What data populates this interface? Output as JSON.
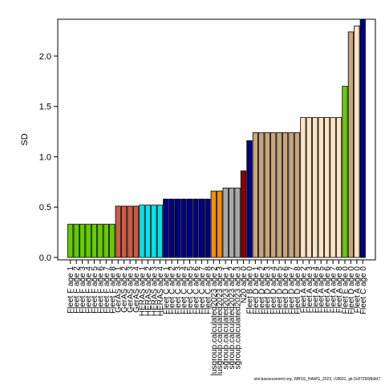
{
  "chart_data": {
    "type": "bar",
    "xlabel": "",
    "ylabel": "SD",
    "ylim": [
      0,
      2.35
    ],
    "yticks": [
      0.0,
      0.5,
      1.0,
      1.5,
      2.0
    ],
    "ytick_labels": [
      "0.0",
      "0.5",
      "1.0",
      "1.5",
      "2.0"
    ],
    "grid": false,
    "legend": "none",
    "bars": [
      {
        "label": "Fleet F age 1",
        "value": 0.33,
        "color": "#66cc00"
      },
      {
        "label": "Fleet F age 2",
        "value": 0.33,
        "color": "#66cc00"
      },
      {
        "label": "Fleet F age 3",
        "value": 0.33,
        "color": "#66cc00"
      },
      {
        "label": "Fleet F age 4",
        "value": 0.33,
        "color": "#66cc00"
      },
      {
        "label": "Fleet F age 5",
        "value": 0.33,
        "color": "#66cc00"
      },
      {
        "label": "Fleet F age 6",
        "value": 0.33,
        "color": "#66cc00"
      },
      {
        "label": "Fleet F age 7",
        "value": 0.33,
        "color": "#66cc00"
      },
      {
        "label": "Fleet F age 8",
        "value": 0.33,
        "color": "#66cc00"
      },
      {
        "label": "GerAS age 1",
        "value": 0.51,
        "color": "#cd5c45"
      },
      {
        "label": "GerAS age 2",
        "value": 0.51,
        "color": "#cd5c45"
      },
      {
        "label": "GerAS age 3",
        "value": 0.51,
        "color": "#cd5c45"
      },
      {
        "label": "GerAS age 4",
        "value": 0.51,
        "color": "#cd5c45"
      },
      {
        "label": "HERAS age 1",
        "value": 0.52,
        "color": "#00e5ee"
      },
      {
        "label": "HERAS age 2",
        "value": 0.52,
        "color": "#00e5ee"
      },
      {
        "label": "HERAS age 3",
        "value": 0.52,
        "color": "#00e5ee"
      },
      {
        "label": "HERAS age 4",
        "value": 0.52,
        "color": "#00e5ee"
      },
      {
        "label": "Fleet C age 1",
        "value": 0.58,
        "color": "#00008b"
      },
      {
        "label": "Fleet C age 2",
        "value": 0.58,
        "color": "#00008b"
      },
      {
        "label": "Fleet C age 3",
        "value": 0.58,
        "color": "#00008b"
      },
      {
        "label": "Fleet C age 4",
        "value": 0.58,
        "color": "#00008b"
      },
      {
        "label": "Fleet C age 5",
        "value": 0.58,
        "color": "#00008b"
      },
      {
        "label": "Fleet C age 6",
        "value": 0.58,
        "color": "#00008b"
      },
      {
        "label": "Fleet C age 7",
        "value": 0.58,
        "color": "#00008b"
      },
      {
        "label": "Fleet C age 8",
        "value": 0.58,
        "color": "#00008b"
      },
      {
        "label": "lusgroup.calculated2023 age 2",
        "value": 0.66,
        "color": "#ff8c00"
      },
      {
        "label": "lusgroup.calculated2023 age 3",
        "value": 0.66,
        "color": "#ff8c00"
      },
      {
        "label": "sgroup.calculated2023 age 1",
        "value": 0.69,
        "color": "#a9a9a9"
      },
      {
        "label": "sgroup.calculated2023 age 2",
        "value": 0.69,
        "color": "#a9a9a9"
      },
      {
        "label": "sgroup.calculated2023 age 3",
        "value": 0.69,
        "color": "#a9a9a9"
      },
      {
        "label": "N20 age 0",
        "value": 0.86,
        "color": "#8b0000"
      },
      {
        "label": "Fleet B age 0",
        "value": 1.16,
        "color": "#00008b"
      },
      {
        "label": "Fleet D age 1",
        "value": 1.24,
        "color": "#c8a57a"
      },
      {
        "label": "Fleet D age 2",
        "value": 1.24,
        "color": "#c8a57a"
      },
      {
        "label": "Fleet D age 3",
        "value": 1.24,
        "color": "#c8a57a"
      },
      {
        "label": "Fleet D age 4",
        "value": 1.24,
        "color": "#c8a57a"
      },
      {
        "label": "Fleet D age 5",
        "value": 1.24,
        "color": "#c8a57a"
      },
      {
        "label": "Fleet D age 6",
        "value": 1.24,
        "color": "#c8a57a"
      },
      {
        "label": "Fleet D age 7",
        "value": 1.24,
        "color": "#c8a57a"
      },
      {
        "label": "Fleet D age 8",
        "value": 1.24,
        "color": "#c8a57a"
      },
      {
        "label": "Fleet A age 2",
        "value": 1.39,
        "color": "#ffe4c4"
      },
      {
        "label": "Fleet A age 3",
        "value": 1.39,
        "color": "#ffe4c4"
      },
      {
        "label": "Fleet A age 4",
        "value": 1.39,
        "color": "#ffe4c4"
      },
      {
        "label": "Fleet A age 5",
        "value": 1.39,
        "color": "#ffe4c4"
      },
      {
        "label": "Fleet A age 6",
        "value": 1.39,
        "color": "#ffe4c4"
      },
      {
        "label": "Fleet A age 7",
        "value": 1.39,
        "color": "#ffe4c4"
      },
      {
        "label": "Fleet A age 8",
        "value": 1.39,
        "color": "#ffe4c4"
      },
      {
        "label": "Fleet E age 0",
        "value": 1.7,
        "color": "#66cc00"
      },
      {
        "label": "Fleet D age 0",
        "value": 2.24,
        "color": "#c8a57a"
      },
      {
        "label": "Fleet A age 0",
        "value": 2.3,
        "color": "#ffe4c4"
      },
      {
        "label": "Fleet C age 0",
        "value": 2.36,
        "color": "#00008b"
      }
    ]
  },
  "footnote": "stockassessment.org, WBSS_HAWG_2023, r18601, git:3c872568b9d7"
}
